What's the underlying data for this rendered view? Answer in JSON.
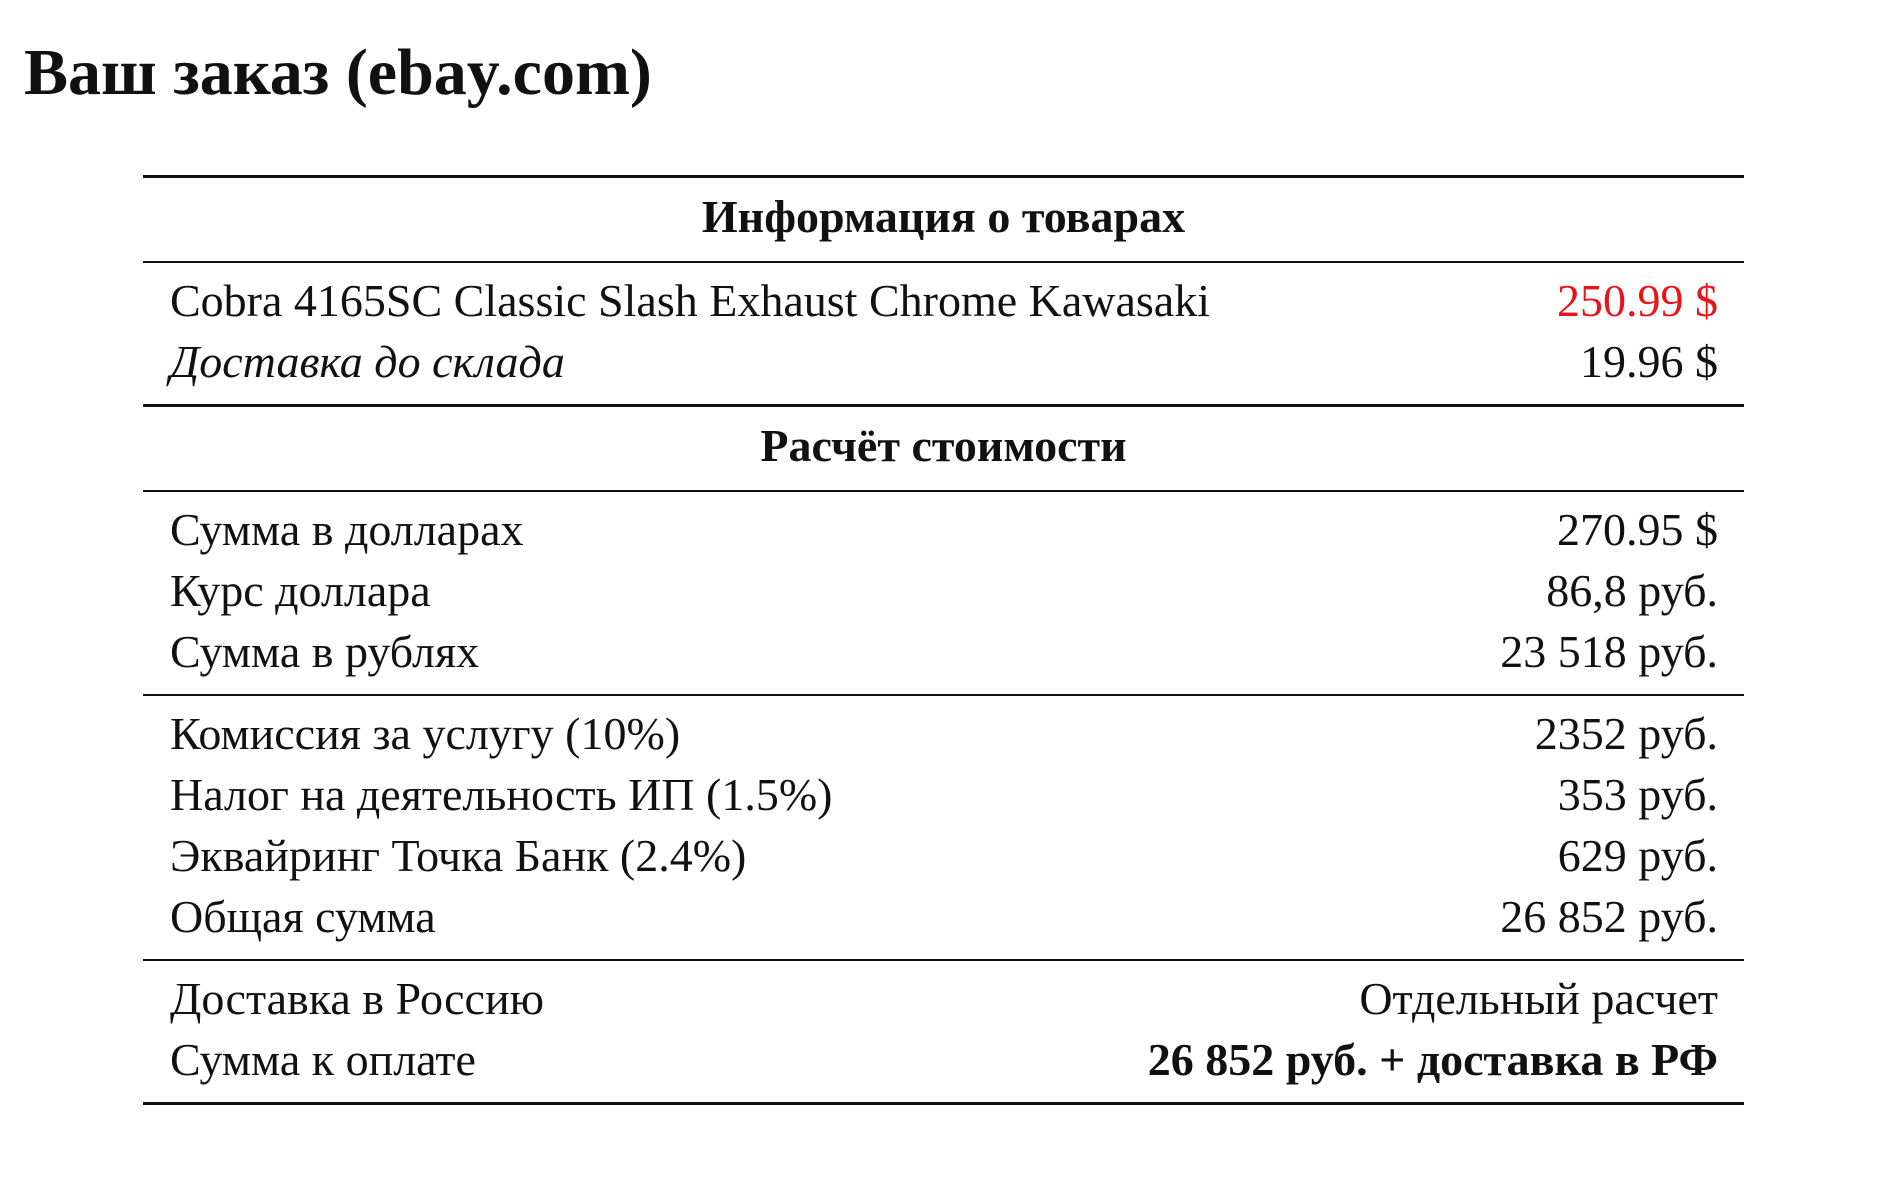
{
  "header": {
    "title": "Ваш заказ (ebay.com)"
  },
  "table": {
    "sections": [
      {
        "heading": "Информация о товарах",
        "groups": [
          [
            [
              "Cobra 4165SC Classic Slash Exhaust Chrome Kawasaki",
              "250.99 $"
            ],
            [
              "Доставка до склада",
              "19.96 $"
            ]
          ]
        ]
      },
      {
        "heading": "Расчёт стоимости",
        "groups": [
          [
            [
              "Сумма в долларах",
              "270.95 $"
            ],
            [
              "Курс доллара",
              "86,8 руб."
            ],
            [
              "Сумма в рублях",
              "23 518 руб."
            ]
          ],
          [
            [
              "Комиссия за услугу (10%)",
              "2352 руб."
            ],
            [
              "Налог на деятельность ИП (1.5%)",
              "353 руб."
            ],
            [
              "Эквайринг Точка Банк (2.4%)",
              "629 руб."
            ],
            [
              "Общая сумма",
              "26 852 руб."
            ]
          ],
          [
            [
              "Доставка в Россию",
              "Отдельный расчет"
            ],
            [
              "Сумма к оплате",
              "26 852 руб. + доставка в РФ"
            ]
          ]
        ]
      }
    ]
  }
}
